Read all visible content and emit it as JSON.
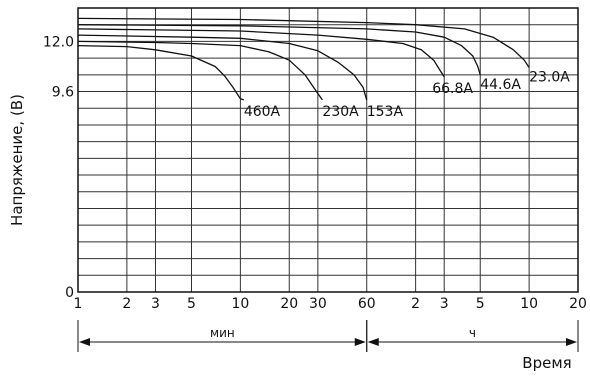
{
  "chart_data": {
    "type": "line",
    "title": "",
    "ylabel": "Напряжение, (В)",
    "xlabel": "Время",
    "y_axis": {
      "ticks": [
        {
          "value": 0,
          "label": "0"
        },
        {
          "value": 9.6,
          "label": "9.6"
        },
        {
          "value": 12.0,
          "label": "12.0"
        }
      ],
      "grid": [
        0,
        0.8,
        1.6,
        2.4,
        3.2,
        4.0,
        4.8,
        5.6,
        6.4,
        7.2,
        8.0,
        8.8,
        9.6,
        10.4,
        11.2,
        12.0,
        12.8,
        13.6
      ],
      "range": [
        0,
        13.6
      ]
    },
    "x_axis": {
      "scale": "log",
      "ticks": [
        {
          "minutes": 1,
          "label": "1"
        },
        {
          "minutes": 2,
          "label": "2"
        },
        {
          "minutes": 3,
          "label": "3"
        },
        {
          "minutes": 5,
          "label": "5"
        },
        {
          "minutes": 10,
          "label": "10"
        },
        {
          "minutes": 20,
          "label": "20"
        },
        {
          "minutes": 30,
          "label": "30"
        },
        {
          "minutes": 60,
          "label": "60"
        },
        {
          "minutes": 120,
          "label": "2"
        },
        {
          "minutes": 180,
          "label": "3"
        },
        {
          "minutes": 300,
          "label": "5"
        },
        {
          "minutes": 600,
          "label": "10"
        },
        {
          "minutes": 1200,
          "label": "20"
        }
      ],
      "range_minutes": [
        1,
        1200
      ],
      "segments": [
        {
          "label": "мин",
          "from_minutes": 1,
          "to_minutes": 60
        },
        {
          "label": "ч",
          "from_minutes": 60,
          "to_minutes": 1200
        }
      ]
    },
    "grid": true,
    "series": [
      {
        "name": "460A",
        "x": [
          1,
          2,
          3,
          5,
          7,
          8,
          9,
          10,
          10.5
        ],
        "y": [
          11.8,
          11.75,
          11.6,
          11.3,
          10.8,
          10.35,
          9.8,
          9.25,
          9.2
        ]
      },
      {
        "name": "230A",
        "x": [
          1,
          3,
          5,
          10,
          15,
          20,
          25,
          30,
          32
        ],
        "y": [
          12.0,
          11.95,
          11.9,
          11.8,
          11.5,
          11.1,
          10.4,
          9.5,
          9.2
        ]
      },
      {
        "name": "153A",
        "x": [
          1,
          5,
          10,
          20,
          30,
          40,
          50,
          57,
          60
        ],
        "y": [
          12.3,
          12.2,
          12.15,
          11.9,
          11.55,
          11.0,
          10.4,
          9.8,
          9.2
        ]
      },
      {
        "name": "66.8A",
        "x": [
          1,
          10,
          30,
          60,
          100,
          130,
          155,
          170,
          180
        ],
        "y": [
          12.6,
          12.5,
          12.3,
          12.1,
          11.9,
          11.6,
          11.1,
          10.6,
          10.3
        ]
      },
      {
        "name": "44.6A",
        "x": [
          1,
          10,
          60,
          120,
          180,
          230,
          270,
          290,
          300
        ],
        "y": [
          12.8,
          12.75,
          12.6,
          12.45,
          12.2,
          11.8,
          11.3,
          10.8,
          10.4
        ]
      },
      {
        "name": "23.0A",
        "x": [
          1,
          10,
          60,
          120,
          240,
          360,
          480,
          560,
          600
        ],
        "y": [
          13.1,
          13.05,
          12.9,
          12.8,
          12.6,
          12.2,
          11.6,
          11.1,
          10.75
        ]
      }
    ],
    "labels": [
      {
        "text": "460A",
        "series": "460A"
      },
      {
        "text": "230A",
        "series": "230A"
      },
      {
        "text": "153A",
        "series": "153A"
      },
      {
        "text": "66.8A",
        "series": "66.8A"
      },
      {
        "text": "44.6A",
        "series": "44.6A"
      },
      {
        "text": "23.0A",
        "series": "23.0A"
      }
    ]
  }
}
